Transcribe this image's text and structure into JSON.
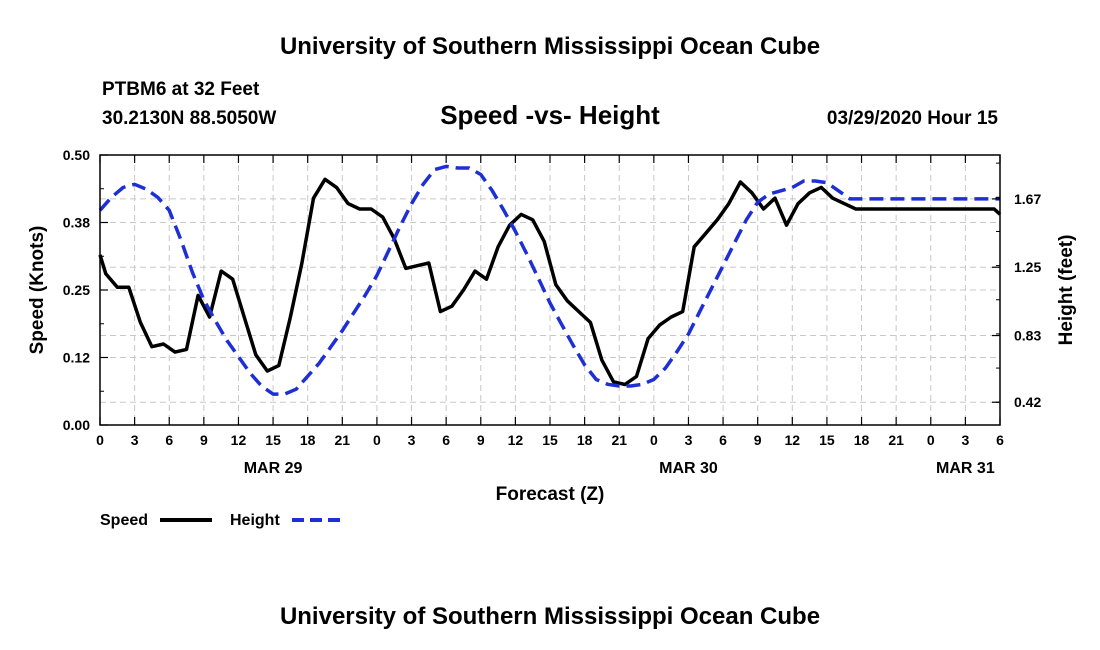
{
  "header": {
    "top_title": "University of Southern Mississippi Ocean Cube",
    "bottom_title": "University of Southern Mississippi Ocean Cube",
    "station": "PTBM6 at 32 Feet",
    "coords": "30.2130N 88.5050W",
    "date": "03/29/2020 Hour 15"
  },
  "chart_data": {
    "type": "line",
    "title": "Speed -vs- Height",
    "xlabel": "Forecast (Z)",
    "ylabel_left": "Speed (Knots)",
    "ylabel_right": "Height (feet)",
    "xlim": [
      0,
      78
    ],
    "ylim_left": [
      0,
      0.5
    ],
    "ylim_right": [
      0.28,
      1.94
    ],
    "grid": true,
    "x_ticks": [
      0,
      3,
      6,
      9,
      12,
      15,
      18,
      21,
      24,
      27,
      30,
      33,
      36,
      39,
      42,
      45,
      48,
      51,
      54,
      57,
      60,
      63,
      66,
      69,
      72,
      75,
      78
    ],
    "x_tick_labels": [
      "0",
      "3",
      "6",
      "9",
      "12",
      "15",
      "18",
      "21",
      "0",
      "3",
      "6",
      "9",
      "12",
      "15",
      "18",
      "21",
      "0",
      "3",
      "6",
      "9",
      "12",
      "15",
      "18",
      "21",
      "0",
      "3",
      "6"
    ],
    "left_ticks": [
      0.0,
      0.125,
      0.25,
      0.375,
      0.5
    ],
    "left_tick_labels": [
      "0.00",
      "0.12",
      "0.25",
      "0.38",
      "0.50"
    ],
    "right_ticks": [
      0.42,
      0.83,
      1.25,
      1.67
    ],
    "right_tick_labels": [
      "0.42",
      "0.83",
      "1.25",
      "1.67"
    ],
    "day_labels": [
      {
        "x": 15,
        "text": "MAR 29"
      },
      {
        "x": 51,
        "text": "MAR 30"
      },
      {
        "x": 75,
        "text": "MAR 31"
      }
    ],
    "series": [
      {
        "name": "Speed",
        "axis": "left",
        "color": "#000000",
        "style": "solid",
        "x": [
          0,
          0.5,
          1.5,
          2.5,
          3.5,
          4.5,
          5.5,
          6.5,
          7.5,
          8.5,
          9.5,
          10.5,
          11.5,
          12.5,
          13.5,
          14.5,
          15.5,
          16.5,
          17.5,
          18.5,
          19.5,
          20.5,
          21.5,
          22.5,
          23.5,
          24.5,
          25.5,
          26.5,
          27.5,
          28.5,
          29.5,
          30.5,
          31.5,
          32.5,
          33.5,
          34.5,
          35.5,
          36.5,
          37.5,
          38.5,
          39.5,
          40.5,
          41.5,
          42.5,
          43.5,
          44.5,
          45.5,
          46.5,
          47.5,
          48.5,
          49.5,
          50.5,
          51.5,
          52.5,
          53.5,
          54.5,
          55.5,
          56.5,
          57.5,
          58.5,
          59.5,
          60.5,
          61.5,
          62.5,
          63.5,
          64.5,
          65.5,
          66.5,
          67.5,
          68.5,
          69.5,
          70.5,
          71.5,
          72.5,
          73.5,
          74.5,
          75.5,
          76.5,
          77.5,
          78
        ],
        "values": [
          0.315,
          0.28,
          0.255,
          0.255,
          0.19,
          0.145,
          0.15,
          0.135,
          0.14,
          0.24,
          0.2,
          0.285,
          0.27,
          0.2,
          0.13,
          0.1,
          0.11,
          0.2,
          0.3,
          0.42,
          0.455,
          0.44,
          0.41,
          0.4,
          0.4,
          0.385,
          0.345,
          0.29,
          0.295,
          0.3,
          0.21,
          0.22,
          0.25,
          0.285,
          0.27,
          0.33,
          0.37,
          0.39,
          0.38,
          0.34,
          0.26,
          0.23,
          0.21,
          0.19,
          0.12,
          0.08,
          0.075,
          0.09,
          0.16,
          0.185,
          0.2,
          0.21,
          0.33,
          0.355,
          0.38,
          0.41,
          0.45,
          0.43,
          0.4,
          0.42,
          0.37,
          0.41,
          0.43,
          0.44,
          0.42,
          0.41,
          0.4,
          0.4,
          0.4,
          0.4,
          0.4,
          0.4,
          0.4,
          0.4,
          0.4,
          0.4,
          0.4,
          0.4,
          0.4,
          0.39
        ]
      },
      {
        "name": "Height",
        "axis": "right",
        "color": "#1f2fd6",
        "style": "dashed",
        "x": [
          0,
          1,
          2,
          3,
          4,
          5,
          6,
          7,
          8,
          9,
          10,
          11,
          12,
          13,
          14,
          15,
          16,
          17,
          18,
          19,
          20,
          21,
          22,
          23,
          24,
          25,
          26,
          27,
          28,
          29,
          30,
          31,
          32,
          33,
          34,
          35,
          36,
          37,
          38,
          39,
          40,
          41,
          42,
          43,
          44,
          45,
          46,
          47,
          48,
          49,
          50,
          51,
          52,
          53,
          54,
          55,
          56,
          57,
          58,
          59,
          60,
          61,
          62,
          63,
          64,
          65,
          66,
          67,
          68,
          69,
          70,
          71,
          72,
          73,
          74,
          75,
          76,
          77,
          78
        ],
        "values": [
          1.6,
          1.68,
          1.74,
          1.76,
          1.73,
          1.68,
          1.6,
          1.42,
          1.22,
          1.05,
          0.92,
          0.8,
          0.7,
          0.6,
          0.52,
          0.47,
          0.47,
          0.5,
          0.58,
          0.66,
          0.76,
          0.86,
          0.97,
          1.08,
          1.2,
          1.35,
          1.5,
          1.64,
          1.76,
          1.85,
          1.87,
          1.86,
          1.86,
          1.82,
          1.72,
          1.6,
          1.47,
          1.33,
          1.18,
          1.03,
          0.9,
          0.77,
          0.65,
          0.56,
          0.53,
          0.52,
          0.52,
          0.53,
          0.56,
          0.63,
          0.73,
          0.84,
          0.98,
          1.12,
          1.26,
          1.4,
          1.54,
          1.65,
          1.7,
          1.72,
          1.74,
          1.78,
          1.78,
          1.77,
          1.72,
          1.67,
          1.67,
          1.67,
          1.67,
          1.67,
          1.67,
          1.67,
          1.67,
          1.67,
          1.67,
          1.67,
          1.67,
          1.67,
          1.67
        ]
      }
    ]
  }
}
